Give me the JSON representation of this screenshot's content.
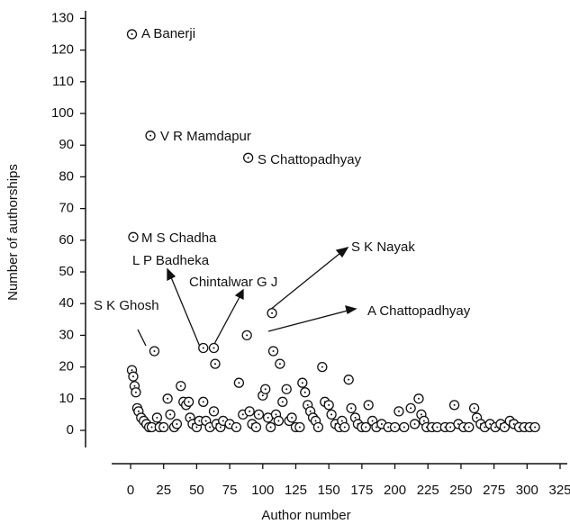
{
  "chart_data": {
    "type": "scatter",
    "x_label": "Author number",
    "y_label": "Number of authorships",
    "xlim": [
      -14,
      325
    ],
    "ylim": [
      -5,
      132
    ],
    "xticks": [
      0,
      25,
      50,
      75,
      100,
      125,
      150,
      175,
      200,
      225,
      250,
      275,
      300,
      325
    ],
    "yticks": [
      0,
      10,
      20,
      30,
      40,
      50,
      60,
      70,
      80,
      90,
      100,
      110,
      120,
      130
    ],
    "annotations": [
      "A Banerji",
      "V R Mamdapur",
      "S Chattopadhyay",
      "M S Chadha",
      "L P Badheka",
      "Chintalwar G J",
      "S K Nayak",
      "A Chattopadhyay",
      "S K Ghosh"
    ],
    "x": [
      1,
      15,
      89,
      2,
      107,
      88,
      55,
      63,
      64,
      18,
      108,
      113,
      1,
      2,
      3,
      4,
      5,
      6,
      8,
      10,
      12,
      14,
      16,
      20,
      22,
      25,
      28,
      30,
      33,
      35,
      38,
      40,
      42,
      44,
      45,
      47,
      50,
      52,
      55,
      57,
      60,
      63,
      65,
      68,
      70,
      75,
      80,
      82,
      85,
      90,
      92,
      95,
      97,
      100,
      102,
      104,
      106,
      110,
      112,
      115,
      118,
      120,
      122,
      125,
      128,
      130,
      132,
      134,
      136,
      138,
      140,
      142,
      145,
      147,
      150,
      152,
      155,
      158,
      160,
      162,
      165,
      167,
      170,
      172,
      175,
      178,
      180,
      183,
      186,
      190,
      195,
      200,
      203,
      207,
      212,
      215,
      218,
      220,
      222,
      224,
      228,
      232,
      238,
      242,
      245,
      248,
      252,
      256,
      260,
      262,
      265,
      268,
      272,
      276,
      280,
      283,
      287,
      290,
      294,
      298,
      302,
      306
    ],
    "y": [
      125,
      93,
      86,
      61,
      37,
      30,
      26,
      26,
      21,
      25,
      25,
      21,
      19,
      17,
      14,
      12,
      7,
      6,
      4,
      3,
      2,
      1,
      1,
      4,
      1,
      1,
      10,
      5,
      1,
      2,
      14,
      9,
      8,
      9,
      4,
      2,
      1,
      3,
      9,
      3,
      1,
      6,
      2,
      1,
      3,
      2,
      1,
      15,
      5,
      6,
      2,
      1,
      5,
      11,
      13,
      4,
      1,
      5,
      3,
      9,
      13,
      3,
      4,
      1,
      1,
      15,
      12,
      8,
      6,
      4,
      3,
      1,
      20,
      9,
      8,
      5,
      2,
      1,
      3,
      1,
      16,
      7,
      4,
      2,
      1,
      1,
      8,
      3,
      1,
      2,
      1,
      1,
      6,
      1,
      7,
      2,
      10,
      5,
      3,
      1,
      1,
      1,
      1,
      1,
      8,
      2,
      1,
      1,
      7,
      4,
      2,
      1,
      2,
      1,
      2,
      1,
      3,
      2,
      1,
      1,
      1,
      1
    ]
  }
}
